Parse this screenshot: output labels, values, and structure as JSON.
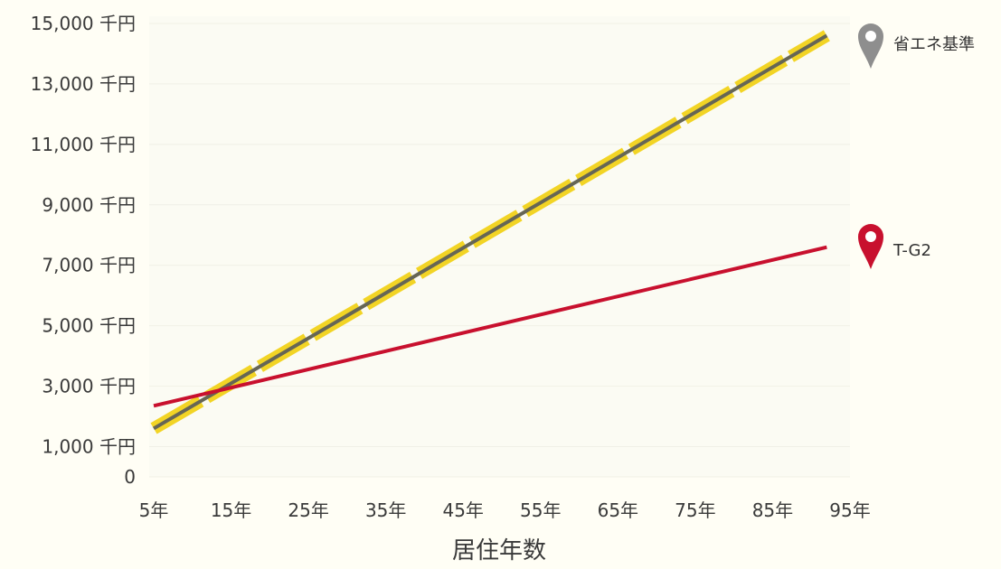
{
  "chart_data": {
    "type": "line",
    "xlabel": "居住年数",
    "ylabel": "",
    "x": [
      5,
      92
    ],
    "xlim": [
      5,
      95
    ],
    "ylim": [
      0,
      15000
    ],
    "x_ticks": [
      "5年",
      "15年",
      "25年",
      "35年",
      "45年",
      "55年",
      "65年",
      "75年",
      "85年",
      "95年"
    ],
    "x_tick_values": [
      5,
      15,
      25,
      35,
      45,
      55,
      65,
      75,
      85,
      95
    ],
    "y_ticks": [
      "0",
      "1,000 千円",
      "3,000 千円",
      "5,000 千円",
      "7,000 千円",
      "9,000 千円",
      "11,000 千円",
      "13,000 千円",
      "15,000 千円"
    ],
    "y_tick_values": [
      0,
      1000,
      3000,
      5000,
      7000,
      9000,
      11000,
      13000,
      15000
    ],
    "grid": true,
    "series": [
      {
        "name": "省エネ基準",
        "values": [
          1600,
          14600
        ],
        "color": "#666655",
        "highlight_color": "#f2d21b",
        "marker_color": "#8e8e8e",
        "marker_icon": "map-pin-icon"
      },
      {
        "name": "T-G2",
        "values": [
          2350,
          7600
        ],
        "color": "#c8102e",
        "marker_color": "#c8102e",
        "marker_icon": "map-pin-icon"
      }
    ]
  }
}
